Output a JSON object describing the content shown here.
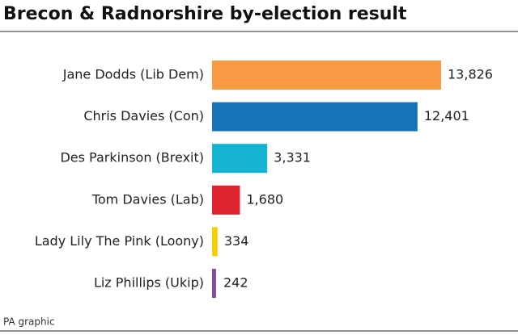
{
  "chart_data": {
    "type": "bar",
    "orientation": "horizontal",
    "title": "Brecon & Radnorshire by-election result",
    "categories": [
      "Jane Dodds (Lib Dem)",
      "Chris Davies (Con)",
      "Des Parkinson (Brexit)",
      "Tom Davies (Lab)",
      "Lady Lily The Pink (Loony)",
      "Liz Phillips (Ukip)"
    ],
    "values": [
      13826,
      12401,
      3331,
      1680,
      334,
      242
    ],
    "value_labels": [
      "13,826",
      "12,401",
      "3,331",
      "1,680",
      "334",
      "242"
    ],
    "colors": [
      "#f89a43",
      "#1673b8",
      "#14b4d2",
      "#e0252e",
      "#f5d000",
      "#7f4fa0"
    ],
    "source": "PA graphic"
  }
}
